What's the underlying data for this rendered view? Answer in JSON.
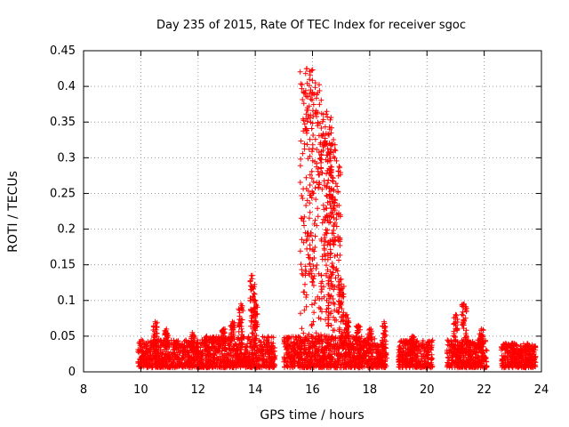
{
  "chart_data": {
    "type": "scatter",
    "title": "Day 235 of 2015, Rate Of TEC Index for receiver sgoc",
    "xlabel": "GPS time / hours",
    "ylabel": "ROTI / TECUs",
    "xlim": [
      8,
      24
    ],
    "ylim": [
      0,
      0.45
    ],
    "xticks": [
      8,
      10,
      12,
      14,
      16,
      18,
      20,
      22,
      24
    ],
    "xtick_labels": [
      "8",
      "10",
      "12",
      "14",
      "16",
      "18",
      "20",
      "22",
      "24"
    ],
    "yticks": [
      0,
      0.05,
      0.1,
      0.15,
      0.2,
      0.25,
      0.3,
      0.35,
      0.4,
      0.45
    ],
    "ytick_labels": [
      "0",
      "0.05",
      "0.1",
      "0.15",
      "0.2",
      "0.25",
      "0.3",
      "0.35",
      "0.4",
      "0.45"
    ],
    "grid": true,
    "marker": "+",
    "color": "#ff0000",
    "series": [
      {
        "name": "ROTI",
        "segments": [
          {
            "x_start": 9.9,
            "x_end": 11.1,
            "baseline_max": 0.045,
            "peaks": [
              [
                10.5,
                0.07
              ],
              [
                10.9,
                0.06
              ]
            ]
          },
          {
            "x_start": 11.1,
            "x_end": 12.4,
            "baseline_max": 0.045,
            "peaks": [
              [
                11.8,
                0.055
              ],
              [
                12.3,
                0.05
              ]
            ]
          },
          {
            "x_start": 12.4,
            "x_end": 13.3,
            "baseline_max": 0.05,
            "peaks": [
              [
                12.9,
                0.06
              ],
              [
                13.2,
                0.07
              ]
            ]
          },
          {
            "x_start": 13.3,
            "x_end": 14.7,
            "baseline_max": 0.05,
            "peaks": [
              [
                13.5,
                0.095
              ],
              [
                13.9,
                0.135
              ],
              [
                14.0,
                0.1
              ]
            ]
          },
          {
            "x_start": 15.0,
            "x_end": 15.5,
            "baseline_max": 0.05,
            "peaks": []
          },
          {
            "x_start": 15.5,
            "x_end": 17.3,
            "baseline_max": 0.05,
            "peaks": [
              [
                15.8,
                0.425
              ],
              [
                16.1,
                0.405
              ],
              [
                16.5,
                0.365
              ],
              [
                16.6,
                0.34
              ],
              [
                16.8,
                0.31
              ],
              [
                17.0,
                0.13
              ],
              [
                17.2,
                0.08
              ]
            ]
          },
          {
            "x_start": 17.3,
            "x_end": 18.2,
            "baseline_max": 0.05,
            "peaks": [
              [
                17.6,
                0.065
              ],
              [
                18.0,
                0.06
              ]
            ]
          },
          {
            "x_start": 18.2,
            "x_end": 18.6,
            "baseline_max": 0.04,
            "peaks": [
              [
                18.5,
                0.07
              ]
            ]
          },
          {
            "x_start": 19.0,
            "x_end": 20.2,
            "baseline_max": 0.045,
            "peaks": [
              [
                19.5,
                0.05
              ]
            ]
          },
          {
            "x_start": 20.7,
            "x_end": 22.1,
            "baseline_max": 0.045,
            "peaks": [
              [
                21.0,
                0.08
              ],
              [
                21.3,
                0.095
              ],
              [
                21.9,
                0.06
              ]
            ]
          },
          {
            "x_start": 22.6,
            "x_end": 23.8,
            "baseline_max": 0.04,
            "peaks": [
              [
                23.0,
                0.04
              ]
            ]
          }
        ]
      }
    ]
  }
}
